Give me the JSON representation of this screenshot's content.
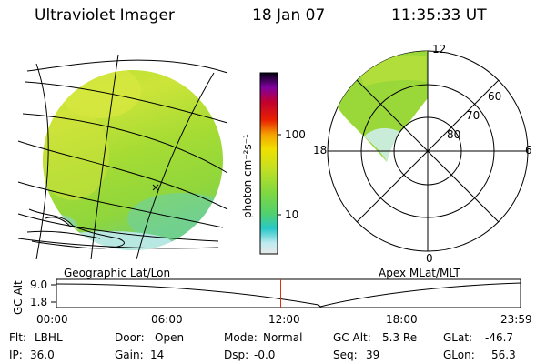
{
  "header": {
    "title": "Ultraviolet Imager",
    "date": "18 Jan 07",
    "time": "11:35:33 UT"
  },
  "left_panel": {
    "caption": "Geographic Lat/Lon"
  },
  "right_panel": {
    "caption": "Apex MLat/MLT",
    "mlt_labels": {
      "top": "12",
      "right": "6",
      "bottom": "0",
      "left": "18"
    },
    "lat_labels": [
      "60",
      "70",
      "80"
    ]
  },
  "colorbar": {
    "unit_label": "photon cm⁻²s⁻¹",
    "ticks": [
      "100",
      "10"
    ]
  },
  "timeline": {
    "ylabel": "GC Alt",
    "y_ticks": [
      "9.0",
      "1.8"
    ],
    "x_ticks": [
      "00:00",
      "06:00",
      "12:00",
      "18:00",
      "23:59"
    ],
    "marker_time_hours": 11.59
  },
  "status": {
    "flt_label": "Flt:",
    "flt_value": "LBHL",
    "ip_label": "IP:",
    "ip_value": "36.0",
    "door_label": "Door:",
    "door_value": "Open",
    "gain_label": "Gain:",
    "gain_value": "14",
    "mode_label": "Mode:",
    "mode_value": "Normal",
    "dsp_label": "Dsp:",
    "dsp_value": "-0.0",
    "gcalt_label": "GC Alt:",
    "gcalt_value": "5.3 Re",
    "seq_label": "Seq:",
    "seq_value": "39",
    "glat_label": "GLat:",
    "glat_value": "-46.7",
    "glon_label": "GLon:",
    "glon_value": "56.3"
  }
}
